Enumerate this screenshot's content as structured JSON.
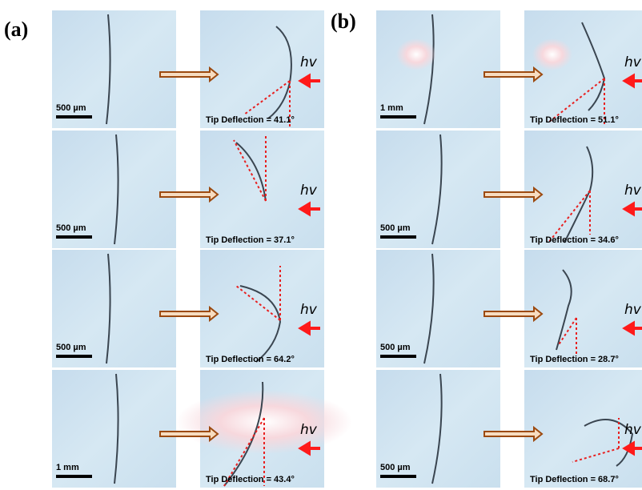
{
  "panels": [
    {
      "label": "(a)",
      "rows": [
        {
          "scale_bar": "500 µm",
          "light": "hv",
          "deflection": "Tip Deflection = 41.1°"
        },
        {
          "scale_bar": "500 µm",
          "light": "hv",
          "deflection": "Tip Deflection = 37.1°"
        },
        {
          "scale_bar": "500 µm",
          "light": "hv",
          "deflection": "Tip Deflection = 64.2°"
        },
        {
          "scale_bar": "1 mm",
          "light": "hv",
          "deflection": "Tip Deflection = 43.4°"
        }
      ]
    },
    {
      "label": "(b)",
      "rows": [
        {
          "scale_bar": "1 mm",
          "light": "hv",
          "deflection": "Tip Deflection = 51.1°"
        },
        {
          "scale_bar": "500 µm",
          "light": "hv",
          "deflection": "Tip Deflection = 34.6°"
        },
        {
          "scale_bar": "500 µm",
          "light": "hv",
          "deflection": "Tip Deflection = 28.7°"
        },
        {
          "scale_bar": "500 µm",
          "light": "hv",
          "deflection": "Tip Deflection = 68.7°"
        }
      ]
    }
  ]
}
